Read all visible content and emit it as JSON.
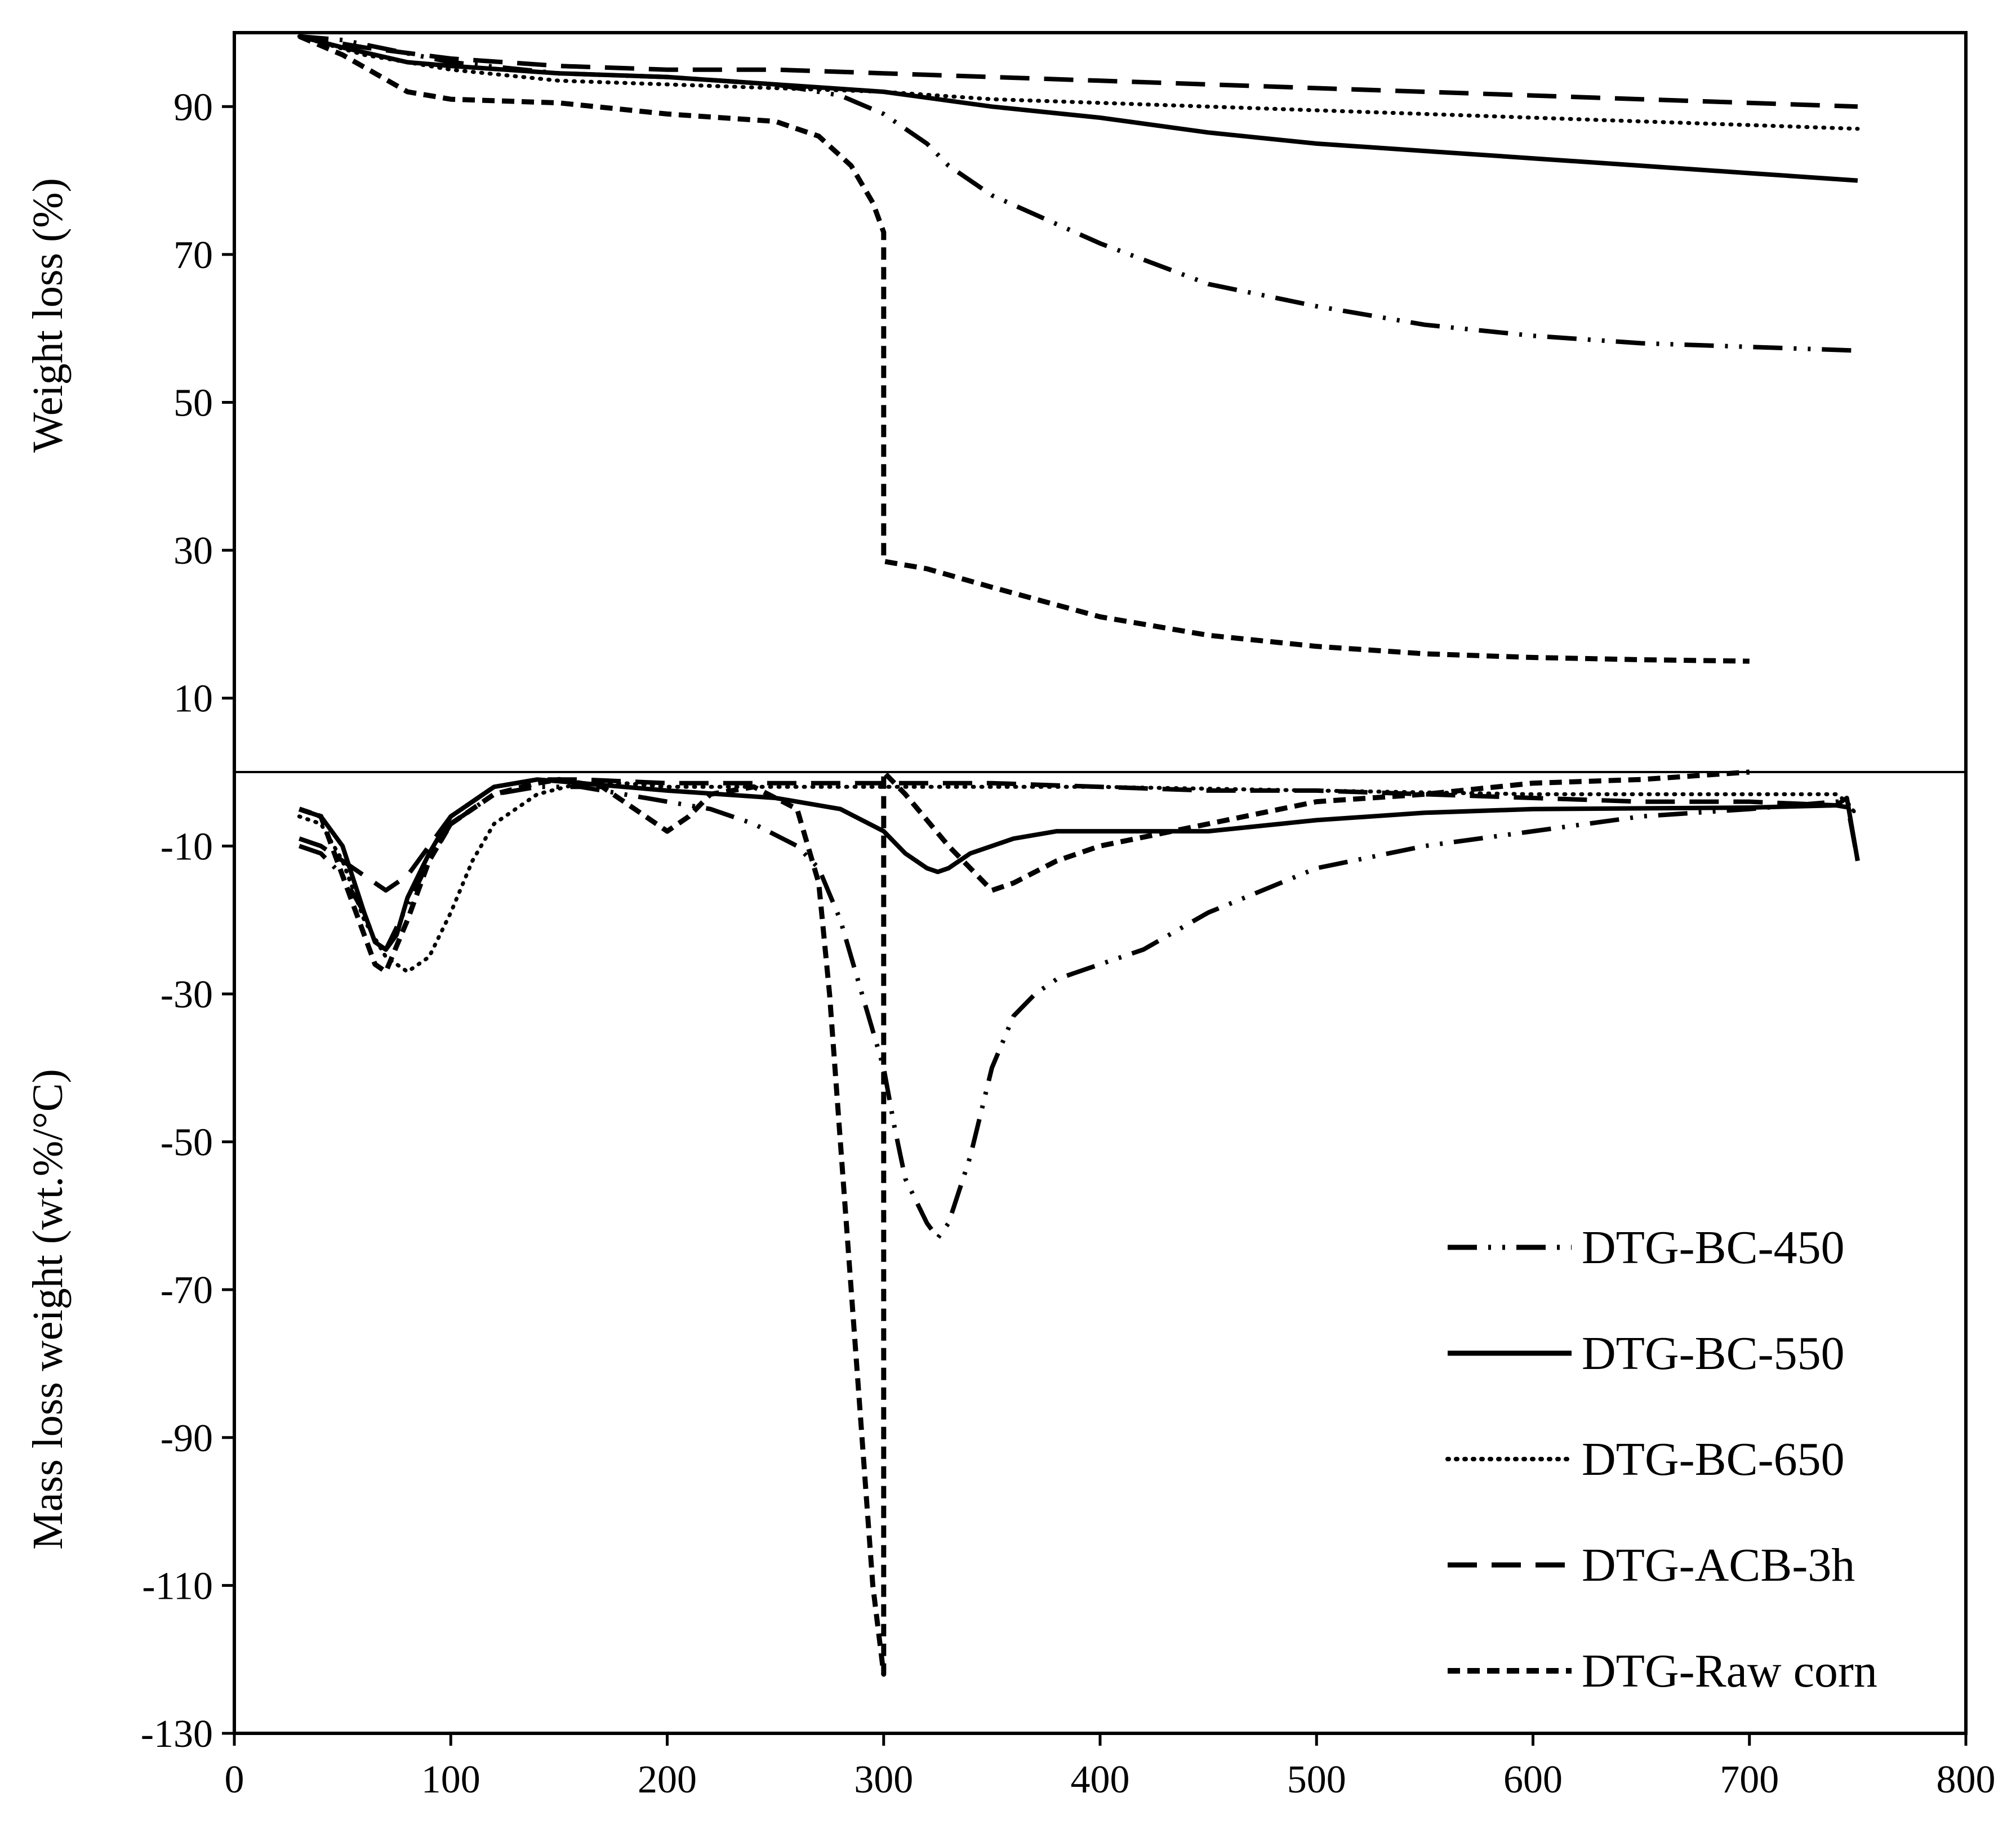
{
  "chart_data": {
    "type": "line",
    "title": "",
    "xlabel": "",
    "ylabel_top": "Weight loss (%)",
    "ylabel_bottom": "Mass loss weight (wt.%/°C)",
    "xlim": [
      0,
      800
    ],
    "ylim": [
      -130,
      100
    ],
    "x_ticks": [
      0,
      100,
      200,
      300,
      400,
      500,
      600,
      700,
      800
    ],
    "y_ticks": [
      90,
      70,
      50,
      30,
      10,
      -10,
      -30,
      -50,
      -70,
      -90,
      -110,
      -130
    ],
    "divider_y": 0,
    "grid": false,
    "legend_position": "bottom-right",
    "series": [
      {
        "name": "DTG-BC-450",
        "style": "dashdotdot",
        "tg": [
          [
            30,
            99.5
          ],
          [
            50,
            99
          ],
          [
            100,
            96
          ],
          [
            150,
            94.5
          ],
          [
            200,
            94
          ],
          [
            250,
            93
          ],
          [
            280,
            91.5
          ],
          [
            300,
            89
          ],
          [
            310,
            87
          ],
          [
            320,
            85
          ],
          [
            330,
            82
          ],
          [
            350,
            78
          ],
          [
            400,
            71.5
          ],
          [
            450,
            66
          ],
          [
            500,
            63
          ],
          [
            550,
            60.5
          ],
          [
            600,
            59
          ],
          [
            650,
            58
          ],
          [
            700,
            57.5
          ],
          [
            750,
            57
          ]
        ],
        "dtg": [
          [
            30,
            -10
          ],
          [
            40,
            -11
          ],
          [
            50,
            -14
          ],
          [
            60,
            -19
          ],
          [
            65,
            -23
          ],
          [
            70,
            -24
          ],
          [
            80,
            -18
          ],
          [
            90,
            -12
          ],
          [
            100,
            -7
          ],
          [
            120,
            -3
          ],
          [
            140,
            -2
          ],
          [
            160,
            -2
          ],
          [
            180,
            -3
          ],
          [
            200,
            -4
          ],
          [
            220,
            -5
          ],
          [
            240,
            -7
          ],
          [
            260,
            -10
          ],
          [
            270,
            -13
          ],
          [
            280,
            -20
          ],
          [
            290,
            -30
          ],
          [
            300,
            -40
          ],
          [
            305,
            -48
          ],
          [
            310,
            -55
          ],
          [
            320,
            -61
          ],
          [
            325,
            -63
          ],
          [
            330,
            -61
          ],
          [
            340,
            -52
          ],
          [
            350,
            -40
          ],
          [
            360,
            -33
          ],
          [
            370,
            -30
          ],
          [
            380,
            -28
          ],
          [
            400,
            -26
          ],
          [
            420,
            -24
          ],
          [
            450,
            -19
          ],
          [
            500,
            -13
          ],
          [
            550,
            -10
          ],
          [
            600,
            -8
          ],
          [
            650,
            -6
          ],
          [
            700,
            -5
          ],
          [
            740,
            -4
          ],
          [
            745,
            -4
          ],
          [
            750,
            -12
          ]
        ]
      },
      {
        "name": "DTG-BC-550",
        "style": "solid",
        "tg": [
          [
            30,
            99.5
          ],
          [
            50,
            98
          ],
          [
            80,
            96
          ],
          [
            100,
            95.5
          ],
          [
            150,
            94.5
          ],
          [
            200,
            94
          ],
          [
            250,
            93
          ],
          [
            300,
            92
          ],
          [
            350,
            90
          ],
          [
            400,
            88.5
          ],
          [
            450,
            86.5
          ],
          [
            500,
            85
          ],
          [
            550,
            84
          ],
          [
            600,
            83
          ],
          [
            650,
            82
          ],
          [
            700,
            81
          ],
          [
            750,
            80
          ]
        ],
        "dtg": [
          [
            30,
            -5
          ],
          [
            40,
            -6
          ],
          [
            50,
            -10
          ],
          [
            60,
            -19
          ],
          [
            65,
            -23
          ],
          [
            70,
            -24
          ],
          [
            75,
            -22
          ],
          [
            80,
            -17
          ],
          [
            90,
            -11
          ],
          [
            100,
            -6
          ],
          [
            120,
            -2
          ],
          [
            140,
            -1
          ],
          [
            160,
            -1.5
          ],
          [
            200,
            -2.5
          ],
          [
            250,
            -3.5
          ],
          [
            280,
            -5
          ],
          [
            300,
            -8
          ],
          [
            310,
            -11
          ],
          [
            320,
            -13
          ],
          [
            325,
            -13.5
          ],
          [
            330,
            -13
          ],
          [
            340,
            -11
          ],
          [
            360,
            -9
          ],
          [
            380,
            -8
          ],
          [
            400,
            -8
          ],
          [
            450,
            -8
          ],
          [
            500,
            -6.5
          ],
          [
            550,
            -5.5
          ],
          [
            600,
            -5
          ],
          [
            700,
            -4.8
          ],
          [
            740,
            -4.5
          ],
          [
            745,
            -3.5
          ],
          [
            750,
            -12
          ]
        ]
      },
      {
        "name": "DTG-BC-650",
        "style": "dotted",
        "tg": [
          [
            30,
            99.5
          ],
          [
            60,
            97
          ],
          [
            100,
            95
          ],
          [
            150,
            93.5
          ],
          [
            200,
            93
          ],
          [
            250,
            92.5
          ],
          [
            300,
            92
          ],
          [
            350,
            91
          ],
          [
            400,
            90.5
          ],
          [
            450,
            90
          ],
          [
            500,
            89.5
          ],
          [
            550,
            89
          ],
          [
            600,
            88.5
          ],
          [
            650,
            88
          ],
          [
            700,
            87.5
          ],
          [
            750,
            87
          ]
        ],
        "dtg": [
          [
            30,
            -6
          ],
          [
            40,
            -7
          ],
          [
            50,
            -12
          ],
          [
            60,
            -20
          ],
          [
            70,
            -25
          ],
          [
            80,
            -27
          ],
          [
            90,
            -25
          ],
          [
            100,
            -19
          ],
          [
            110,
            -12
          ],
          [
            120,
            -7
          ],
          [
            140,
            -3
          ],
          [
            160,
            -1.5
          ],
          [
            180,
            -1.5
          ],
          [
            200,
            -2
          ],
          [
            250,
            -2
          ],
          [
            300,
            -2
          ],
          [
            350,
            -2
          ],
          [
            400,
            -2
          ],
          [
            500,
            -2.5
          ],
          [
            600,
            -3
          ],
          [
            700,
            -3
          ],
          [
            740,
            -3
          ],
          [
            745,
            -4
          ],
          [
            750,
            -6
          ]
        ]
      },
      {
        "name": "DTG-ACB-3h",
        "style": "dashed",
        "tg": [
          [
            30,
            99.5
          ],
          [
            60,
            98
          ],
          [
            100,
            96.5
          ],
          [
            150,
            95.5
          ],
          [
            200,
            95
          ],
          [
            250,
            95
          ],
          [
            300,
            94.5
          ],
          [
            350,
            94
          ],
          [
            400,
            93.5
          ],
          [
            450,
            93
          ],
          [
            500,
            92.5
          ],
          [
            550,
            92
          ],
          [
            600,
            91.5
          ],
          [
            650,
            91
          ],
          [
            700,
            90.5
          ],
          [
            750,
            90
          ]
        ],
        "dtg": [
          [
            30,
            -9
          ],
          [
            40,
            -10
          ],
          [
            50,
            -12
          ],
          [
            60,
            -14
          ],
          [
            70,
            -16
          ],
          [
            80,
            -14
          ],
          [
            90,
            -10
          ],
          [
            100,
            -6
          ],
          [
            120,
            -2
          ],
          [
            140,
            -1
          ],
          [
            160,
            -1
          ],
          [
            200,
            -1.5
          ],
          [
            250,
            -1.5
          ],
          [
            300,
            -1.5
          ],
          [
            350,
            -1.5
          ],
          [
            400,
            -2
          ],
          [
            450,
            -2.5
          ],
          [
            500,
            -2.5
          ],
          [
            550,
            -3
          ],
          [
            600,
            -3.5
          ],
          [
            650,
            -4
          ],
          [
            700,
            -4
          ],
          [
            740,
            -4.5
          ],
          [
            750,
            -5
          ]
        ]
      },
      {
        "name": "DTG-Raw corn",
        "style": "shortdash",
        "tg": [
          [
            30,
            99.5
          ],
          [
            50,
            97
          ],
          [
            80,
            92
          ],
          [
            100,
            91
          ],
          [
            150,
            90.5
          ],
          [
            200,
            89
          ],
          [
            250,
            88
          ],
          [
            270,
            86
          ],
          [
            285,
            82
          ],
          [
            295,
            77
          ],
          [
            300,
            73
          ],
          [
            300,
            28.5
          ],
          [
            320,
            27.5
          ],
          [
            350,
            25
          ],
          [
            400,
            21
          ],
          [
            450,
            18.5
          ],
          [
            500,
            17
          ],
          [
            550,
            16
          ],
          [
            600,
            15.5
          ],
          [
            650,
            15.2
          ],
          [
            700,
            15
          ]
        ],
        "dtg": [
          [
            30,
            -5
          ],
          [
            40,
            -6
          ],
          [
            50,
            -14
          ],
          [
            60,
            -22
          ],
          [
            65,
            -26
          ],
          [
            70,
            -27
          ],
          [
            80,
            -20
          ],
          [
            90,
            -12
          ],
          [
            100,
            -7
          ],
          [
            120,
            -3
          ],
          [
            140,
            -1.5
          ],
          [
            150,
            -1
          ],
          [
            170,
            -2
          ],
          [
            190,
            -6
          ],
          [
            200,
            -8
          ],
          [
            210,
            -6
          ],
          [
            220,
            -3
          ],
          [
            240,
            -2
          ],
          [
            260,
            -5
          ],
          [
            270,
            -15
          ],
          [
            275,
            -30
          ],
          [
            280,
            -50
          ],
          [
            285,
            -70
          ],
          [
            290,
            -90
          ],
          [
            295,
            -110
          ],
          [
            300,
            -122
          ],
          [
            300,
            0
          ],
          [
            310,
            -3
          ],
          [
            330,
            -10
          ],
          [
            350,
            -16
          ],
          [
            360,
            -15
          ],
          [
            380,
            -12
          ],
          [
            400,
            -10
          ],
          [
            450,
            -7
          ],
          [
            500,
            -4
          ],
          [
            550,
            -3
          ],
          [
            600,
            -1.5
          ],
          [
            650,
            -1
          ],
          [
            700,
            0
          ]
        ]
      }
    ]
  }
}
